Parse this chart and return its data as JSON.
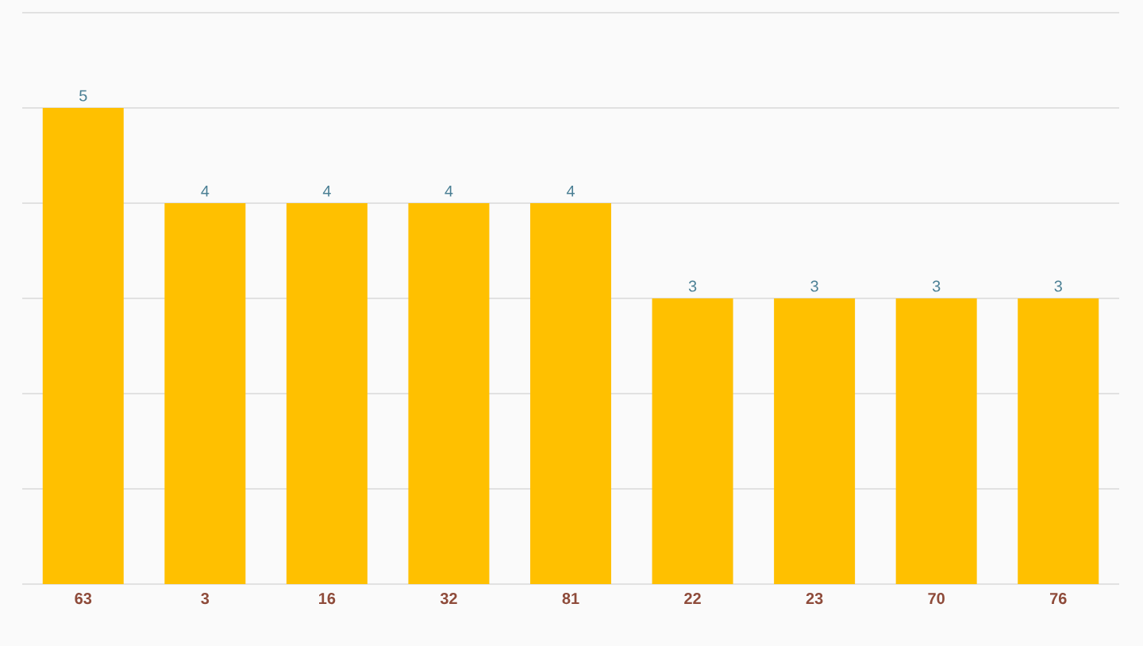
{
  "chart_data": {
    "type": "bar",
    "categories": [
      "63",
      "3",
      "16",
      "32",
      "81",
      "22",
      "23",
      "70",
      "76"
    ],
    "values": [
      5,
      4,
      4,
      4,
      4,
      3,
      3,
      3,
      3
    ],
    "color": "#ffc000",
    "ylim": [
      0,
      6
    ],
    "yticks": [
      {
        "value": 0,
        "label": null
      },
      {
        "value": 1,
        "label": null
      },
      {
        "value": 2,
        "label": null
      },
      {
        "value": 3,
        "label": null
      },
      {
        "value": 4,
        "label": null
      },
      {
        "value": 5,
        "label": null
      },
      {
        "value": 6,
        "label": null
      }
    ],
    "tick_labels": "x",
    "grid": "y",
    "data_labels": true
  }
}
